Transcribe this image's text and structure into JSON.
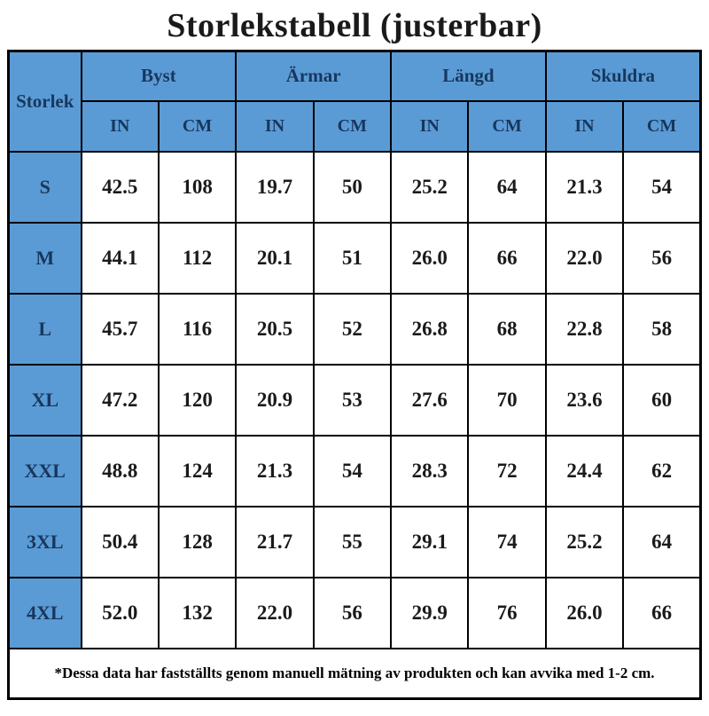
{
  "title": "Storlekstabell (justerbar)",
  "chart_data": {
    "type": "table",
    "title": "Storlekstabell (justerbar)",
    "size_column_header": "Storlek",
    "column_groups": [
      "Byst",
      "Ärmar",
      "Längd",
      "Skuldra"
    ],
    "unit_headers": [
      "IN",
      "CM",
      "IN",
      "CM",
      "IN",
      "CM",
      "IN",
      "CM"
    ],
    "rows": [
      {
        "size": "S",
        "values": [
          "42.5",
          "108",
          "19.7",
          "50",
          "25.2",
          "64",
          "21.3",
          "54"
        ]
      },
      {
        "size": "M",
        "values": [
          "44.1",
          "112",
          "20.1",
          "51",
          "26.0",
          "66",
          "22.0",
          "56"
        ]
      },
      {
        "size": "L",
        "values": [
          "45.7",
          "116",
          "20.5",
          "52",
          "26.8",
          "68",
          "22.8",
          "58"
        ]
      },
      {
        "size": "XL",
        "values": [
          "47.2",
          "120",
          "20.9",
          "53",
          "27.6",
          "70",
          "23.6",
          "60"
        ]
      },
      {
        "size": "XXL",
        "values": [
          "48.8",
          "124",
          "21.3",
          "54",
          "28.3",
          "72",
          "24.4",
          "62"
        ]
      },
      {
        "size": "3XL",
        "values": [
          "50.4",
          "128",
          "21.7",
          "55",
          "29.1",
          "74",
          "25.2",
          "64"
        ]
      },
      {
        "size": "4XL",
        "values": [
          "52.0",
          "132",
          "22.0",
          "56",
          "29.9",
          "76",
          "26.0",
          "66"
        ]
      }
    ],
    "footnote": "*Dessa data har fastställts genom manuell mätning av produkten och kan avvika med 1-2 cm."
  },
  "colors": {
    "header_bg": "#5B9BD5",
    "header_text": "#17375E",
    "body_text": "#1a1a1a",
    "border": "#000000",
    "background": "#ffffff"
  }
}
